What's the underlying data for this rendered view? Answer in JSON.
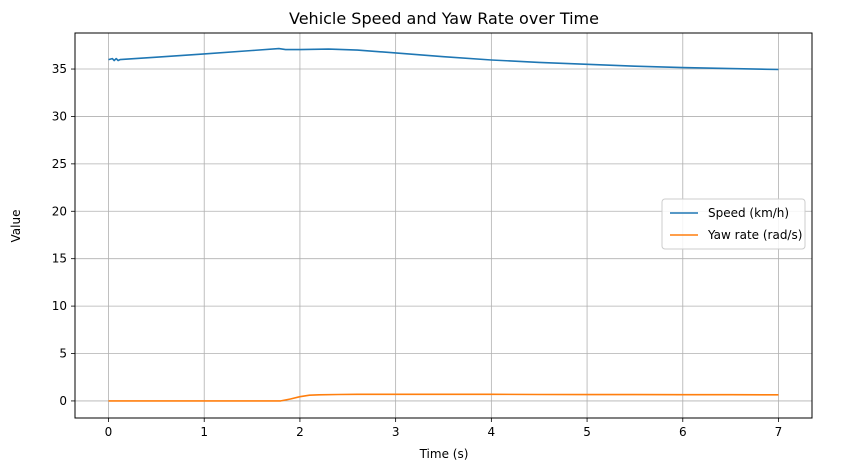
{
  "chart_data": {
    "type": "line",
    "title": "Vehicle Speed and Yaw Rate over Time",
    "xlabel": "Time (s)",
    "ylabel": "Value",
    "xlim": [
      -0.35,
      7.35
    ],
    "ylim": [
      -1.8,
      38.8
    ],
    "xticks": [
      0,
      1,
      2,
      3,
      4,
      5,
      6,
      7
    ],
    "yticks": [
      0,
      5,
      10,
      15,
      20,
      25,
      30,
      35
    ],
    "grid": true,
    "legend_position": "center-right",
    "series": [
      {
        "name": "Speed (km/h)",
        "color": "#1f77b4",
        "x": [
          0.0,
          0.04,
          0.06,
          0.08,
          0.1,
          0.12,
          0.2,
          0.5,
          1.0,
          1.5,
          1.78,
          1.85,
          2.0,
          2.3,
          2.6,
          3.0,
          3.5,
          4.0,
          4.5,
          5.0,
          5.5,
          6.0,
          6.5,
          7.0
        ],
        "y": [
          36.0,
          36.1,
          35.9,
          36.1,
          35.9,
          36.0,
          36.05,
          36.25,
          36.6,
          36.95,
          37.15,
          37.05,
          37.05,
          37.1,
          37.0,
          36.7,
          36.3,
          35.95,
          35.7,
          35.5,
          35.3,
          35.15,
          35.05,
          34.95
        ]
      },
      {
        "name": "Yaw rate (rad/s)",
        "color": "#ff7f0e",
        "x": [
          0.0,
          0.5,
          1.0,
          1.5,
          1.8,
          1.9,
          2.0,
          2.1,
          2.2,
          2.4,
          2.6,
          3.0,
          3.5,
          4.0,
          4.5,
          5.0,
          5.5,
          6.0,
          6.5,
          7.0
        ],
        "y": [
          0.0,
          0.0,
          0.0,
          0.0,
          0.0,
          0.2,
          0.45,
          0.6,
          0.65,
          0.68,
          0.7,
          0.7,
          0.7,
          0.7,
          0.68,
          0.67,
          0.67,
          0.66,
          0.66,
          0.65
        ]
      }
    ]
  }
}
